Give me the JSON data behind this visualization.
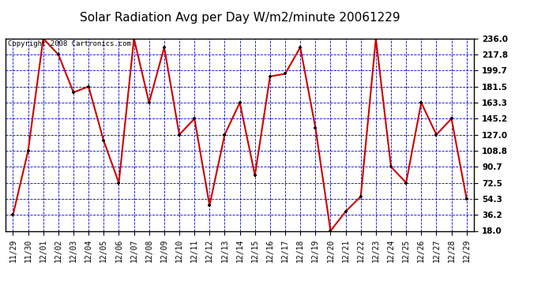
{
  "title": "Solar Radiation Avg per Day W/m2/minute 20061229",
  "copyright_text": "Copyright 2008 Cartronics.com",
  "dates": [
    "11/29",
    "11/30",
    "12/01",
    "12/02",
    "12/03",
    "12/04",
    "12/05",
    "12/06",
    "12/07",
    "12/08",
    "12/09",
    "12/10",
    "12/11",
    "12/12",
    "12/13",
    "12/14",
    "12/15",
    "12/16",
    "12/17",
    "12/18",
    "12/19",
    "12/20",
    "12/21",
    "12/22",
    "12/23",
    "12/24",
    "12/25",
    "12/26",
    "12/27",
    "12/28",
    "12/29"
  ],
  "values": [
    36.2,
    108.8,
    236.0,
    217.8,
    175.0,
    181.5,
    120.0,
    72.5,
    236.0,
    163.3,
    226.0,
    127.0,
    145.2,
    47.0,
    127.0,
    163.3,
    81.0,
    193.0,
    196.0,
    226.0,
    135.0,
    18.0,
    40.0,
    57.0,
    236.0,
    90.7,
    72.5,
    163.3,
    127.0,
    145.2,
    54.3
  ],
  "ylim": [
    18.0,
    236.0
  ],
  "yticks": [
    18.0,
    36.2,
    54.3,
    72.5,
    90.7,
    108.8,
    127.0,
    145.2,
    163.3,
    181.5,
    199.7,
    217.8,
    236.0
  ],
  "line_color": "#cc0000",
  "marker_color": "#000000",
  "bg_color": "#ffffff",
  "plot_bg_color": "#ffffff",
  "grid_color": "#0000cc",
  "title_fontsize": 11,
  "axis_tick_fontsize": 7,
  "copyright_fontsize": 6.5
}
